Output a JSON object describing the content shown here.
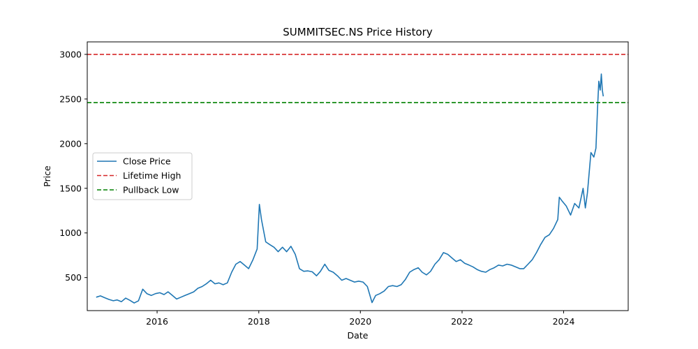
{
  "chart_data": {
    "type": "line",
    "title": "SUMMITSEC.NS Price History",
    "xlabel": "Date",
    "ylabel": "Price",
    "xlim": [
      "2014-08-17",
      "2025-04-09"
    ],
    "ylim": [
      130,
      3140
    ],
    "x_ticks": [
      {
        "label": "2016",
        "date": "2016-01-01"
      },
      {
        "label": "2018",
        "date": "2018-01-01"
      },
      {
        "label": "2020",
        "date": "2020-01-01"
      },
      {
        "label": "2022",
        "date": "2022-01-01"
      },
      {
        "label": "2024",
        "date": "2024-01-01"
      }
    ],
    "y_ticks": [
      500,
      1000,
      1500,
      2000,
      2500,
      3000
    ],
    "grid": false,
    "legend_position": "center-left",
    "series": [
      {
        "name": "Close Price",
        "color": "#1f77b4",
        "style": "solid",
        "points": [
          [
            "2014-10-20",
            280
          ],
          [
            "2014-11-20",
            295
          ],
          [
            "2014-12-20",
            275
          ],
          [
            "2015-01-20",
            255
          ],
          [
            "2015-02-20",
            240
          ],
          [
            "2015-03-20",
            250
          ],
          [
            "2015-04-20",
            230
          ],
          [
            "2015-05-20",
            270
          ],
          [
            "2015-06-20",
            245
          ],
          [
            "2015-07-20",
            215
          ],
          [
            "2015-08-20",
            240
          ],
          [
            "2015-09-20",
            370
          ],
          [
            "2015-10-20",
            320
          ],
          [
            "2015-11-20",
            300
          ],
          [
            "2015-12-20",
            320
          ],
          [
            "2016-01-20",
            330
          ],
          [
            "2016-02-20",
            310
          ],
          [
            "2016-03-20",
            340
          ],
          [
            "2016-04-20",
            300
          ],
          [
            "2016-05-20",
            260
          ],
          [
            "2016-06-20",
            280
          ],
          [
            "2016-07-20",
            300
          ],
          [
            "2016-08-20",
            320
          ],
          [
            "2016-09-20",
            340
          ],
          [
            "2016-10-20",
            380
          ],
          [
            "2016-11-20",
            400
          ],
          [
            "2016-12-20",
            430
          ],
          [
            "2017-01-20",
            470
          ],
          [
            "2017-02-20",
            430
          ],
          [
            "2017-03-20",
            440
          ],
          [
            "2017-04-20",
            420
          ],
          [
            "2017-05-20",
            440
          ],
          [
            "2017-06-20",
            560
          ],
          [
            "2017-07-20",
            650
          ],
          [
            "2017-08-20",
            680
          ],
          [
            "2017-09-20",
            640
          ],
          [
            "2017-10-20",
            600
          ],
          [
            "2017-11-20",
            700
          ],
          [
            "2017-12-20",
            820
          ],
          [
            "2018-01-05",
            1320
          ],
          [
            "2018-01-20",
            1150
          ],
          [
            "2018-02-20",
            900
          ],
          [
            "2018-03-20",
            870
          ],
          [
            "2018-04-20",
            840
          ],
          [
            "2018-05-20",
            790
          ],
          [
            "2018-06-20",
            840
          ],
          [
            "2018-07-20",
            790
          ],
          [
            "2018-08-20",
            850
          ],
          [
            "2018-09-20",
            760
          ],
          [
            "2018-10-20",
            600
          ],
          [
            "2018-11-20",
            570
          ],
          [
            "2018-12-20",
            575
          ],
          [
            "2019-01-20",
            565
          ],
          [
            "2019-02-20",
            520
          ],
          [
            "2019-03-20",
            570
          ],
          [
            "2019-04-20",
            650
          ],
          [
            "2019-05-20",
            580
          ],
          [
            "2019-06-20",
            560
          ],
          [
            "2019-07-20",
            520
          ],
          [
            "2019-08-20",
            470
          ],
          [
            "2019-09-20",
            490
          ],
          [
            "2019-10-20",
            470
          ],
          [
            "2019-11-20",
            450
          ],
          [
            "2019-12-20",
            460
          ],
          [
            "2020-01-20",
            450
          ],
          [
            "2020-02-20",
            400
          ],
          [
            "2020-03-25",
            220
          ],
          [
            "2020-04-20",
            300
          ],
          [
            "2020-05-20",
            320
          ],
          [
            "2020-06-20",
            350
          ],
          [
            "2020-07-20",
            400
          ],
          [
            "2020-08-20",
            410
          ],
          [
            "2020-09-20",
            400
          ],
          [
            "2020-10-20",
            420
          ],
          [
            "2020-11-20",
            480
          ],
          [
            "2020-12-20",
            560
          ],
          [
            "2021-01-20",
            590
          ],
          [
            "2021-02-20",
            610
          ],
          [
            "2021-03-20",
            560
          ],
          [
            "2021-04-20",
            530
          ],
          [
            "2021-05-20",
            570
          ],
          [
            "2021-06-20",
            650
          ],
          [
            "2021-07-20",
            700
          ],
          [
            "2021-08-20",
            780
          ],
          [
            "2021-09-20",
            760
          ],
          [
            "2021-10-20",
            720
          ],
          [
            "2021-11-20",
            680
          ],
          [
            "2021-12-20",
            700
          ],
          [
            "2022-01-20",
            660
          ],
          [
            "2022-02-20",
            640
          ],
          [
            "2022-03-20",
            620
          ],
          [
            "2022-04-20",
            590
          ],
          [
            "2022-05-20",
            570
          ],
          [
            "2022-06-20",
            560
          ],
          [
            "2022-07-20",
            590
          ],
          [
            "2022-08-20",
            610
          ],
          [
            "2022-09-20",
            640
          ],
          [
            "2022-10-20",
            630
          ],
          [
            "2022-11-20",
            650
          ],
          [
            "2022-12-20",
            640
          ],
          [
            "2023-01-20",
            620
          ],
          [
            "2023-02-20",
            600
          ],
          [
            "2023-03-20",
            600
          ],
          [
            "2023-04-20",
            650
          ],
          [
            "2023-05-20",
            700
          ],
          [
            "2023-06-20",
            780
          ],
          [
            "2023-07-20",
            870
          ],
          [
            "2023-08-20",
            950
          ],
          [
            "2023-09-20",
            980
          ],
          [
            "2023-10-20",
            1050
          ],
          [
            "2023-11-20",
            1150
          ],
          [
            "2023-12-01",
            1400
          ],
          [
            "2023-12-20",
            1360
          ],
          [
            "2024-01-20",
            1300
          ],
          [
            "2024-02-20",
            1200
          ],
          [
            "2024-03-20",
            1330
          ],
          [
            "2024-04-20",
            1280
          ],
          [
            "2024-05-20",
            1500
          ],
          [
            "2024-06-05",
            1280
          ],
          [
            "2024-06-20",
            1450
          ],
          [
            "2024-07-15",
            1900
          ],
          [
            "2024-08-05",
            1850
          ],
          [
            "2024-08-20",
            1950
          ],
          [
            "2024-09-01",
            2400
          ],
          [
            "2024-09-10",
            2700
          ],
          [
            "2024-09-20",
            2600
          ],
          [
            "2024-09-28",
            2780
          ],
          [
            "2024-10-05",
            2600
          ],
          [
            "2024-10-12",
            2530
          ]
        ]
      },
      {
        "name": "Lifetime High",
        "color": "#d62728",
        "style": "dashed",
        "y": 3000
      },
      {
        "name": "Pullback Low",
        "color": "#008000",
        "style": "dashed",
        "y": 2460
      }
    ]
  }
}
